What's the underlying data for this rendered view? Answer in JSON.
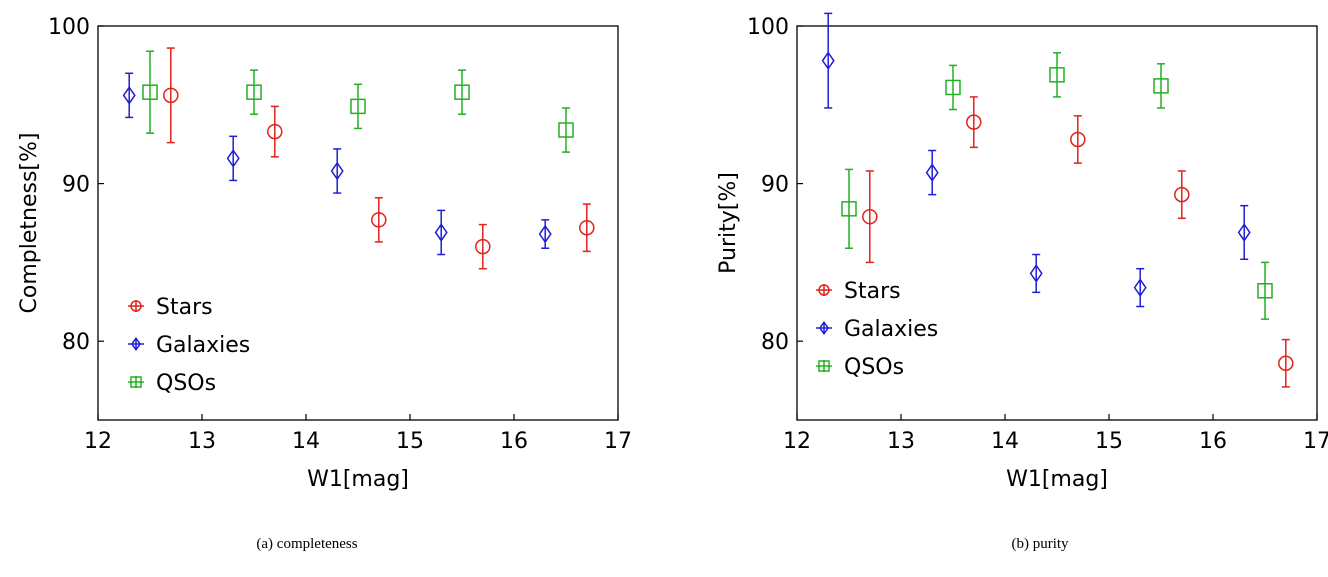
{
  "chart_data": [
    {
      "type": "scatter",
      "caption": "(a) completeness",
      "xlabel": "W1[mag]",
      "ylabel": "Completness[%]",
      "xlim": [
        12,
        17
      ],
      "ylim": [
        75,
        100
      ],
      "xticks": [
        12,
        13,
        14,
        15,
        16,
        17
      ],
      "yticks": [
        80,
        90,
        100
      ],
      "legend_position": "lower-left",
      "series": [
        {
          "name": "Stars",
          "color": "#e3211c",
          "marker": "circle",
          "x": [
            12.7,
            13.7,
            14.7,
            15.7,
            16.7
          ],
          "y": [
            95.6,
            93.3,
            87.7,
            86.0,
            87.2
          ],
          "err": [
            3.0,
            1.6,
            1.4,
            1.4,
            1.5
          ]
        },
        {
          "name": "Galaxies",
          "color": "#1f1fd6",
          "marker": "diamond",
          "x": [
            12.3,
            13.3,
            14.3,
            15.3,
            16.3
          ],
          "y": [
            95.6,
            91.6,
            90.8,
            86.9,
            86.8
          ],
          "err": [
            1.4,
            1.4,
            1.4,
            1.4,
            0.9
          ]
        },
        {
          "name": "QSOs",
          "color": "#22b022",
          "marker": "square",
          "x": [
            12.5,
            13.5,
            14.5,
            15.5,
            16.5
          ],
          "y": [
            95.8,
            95.8,
            94.9,
            95.8,
            93.4
          ],
          "err": [
            2.6,
            1.4,
            1.4,
            1.4,
            1.4
          ]
        }
      ]
    },
    {
      "type": "scatter",
      "caption": "(b) purity",
      "xlabel": "W1[mag]",
      "ylabel": "Purity[%]",
      "xlim": [
        12,
        17
      ],
      "ylim": [
        75,
        100
      ],
      "xticks": [
        12,
        13,
        14,
        15,
        16,
        17
      ],
      "yticks": [
        80,
        90,
        100
      ],
      "legend_position": "lower-left",
      "series": [
        {
          "name": "Stars",
          "color": "#e3211c",
          "marker": "circle",
          "x": [
            12.7,
            13.7,
            14.7,
            15.7,
            16.7
          ],
          "y": [
            87.9,
            93.9,
            92.8,
            89.3,
            78.6
          ],
          "err": [
            2.9,
            1.6,
            1.5,
            1.5,
            1.5
          ]
        },
        {
          "name": "Galaxies",
          "color": "#1f1fd6",
          "marker": "diamond",
          "x": [
            12.3,
            13.3,
            14.3,
            15.3,
            16.3
          ],
          "y": [
            97.8,
            90.7,
            84.3,
            83.4,
            86.9
          ],
          "err": [
            3.0,
            1.4,
            1.2,
            1.2,
            1.7
          ]
        },
        {
          "name": "QSOs",
          "color": "#22b022",
          "marker": "square",
          "x": [
            12.5,
            13.5,
            14.5,
            15.5,
            16.5
          ],
          "y": [
            88.4,
            96.1,
            96.9,
            96.2,
            83.2
          ],
          "err": [
            2.5,
            1.4,
            1.4,
            1.4,
            1.8
          ]
        }
      ]
    }
  ]
}
